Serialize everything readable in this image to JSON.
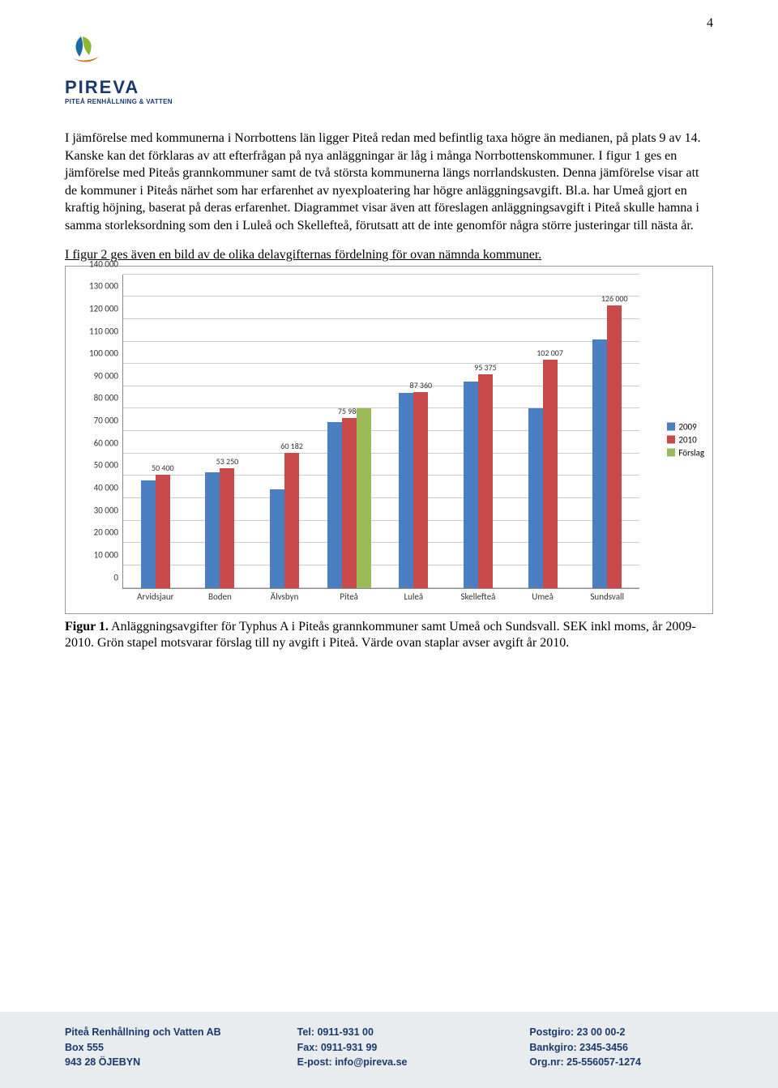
{
  "page_number": "4",
  "logo": {
    "name": "PIREVA",
    "subtitle": "PITEÅ RENHÅLLNING & VATTEN",
    "leaf_left_color": "#1a6aa8",
    "leaf_right_color": "#8ab833",
    "swoosh_color": "#c97a1e"
  },
  "paragraph1": "I jämförelse med kommunerna i Norrbottens län ligger Piteå redan med befintlig taxa högre än medianen, på plats 9 av 14. Kanske kan det förklaras av att efterfrågan på nya anläggningar är låg i många Norrbottenskommuner. I figur 1 ges en jämförelse med Piteås grannkommuner samt de två största kommunerna längs norrlandskusten. Denna jämförelse visar att de kommuner i Piteås närhet som har erfarenhet av nyexploatering har högre anläggningsavgift. Bl.a. har Umeå gjort en kraftig höjning, baserat på deras erfarenhet. Diagrammet visar även att föreslagen anläggningsavgift i Piteå skulle hamna i samma storleksordning som den i Luleå och Skellefteå, förutsatt att de inte genomför några större justeringar till nästa år.",
  "chart_intro": "I figur 2 ges även en bild av de olika delavgifternas fördelning för ovan nämnda kommuner.",
  "chart": {
    "ymax": 140000,
    "ytick_step": 10000,
    "yticks": [
      "0",
      "10 000",
      "20 000",
      "30 000",
      "40 000",
      "50 000",
      "60 000",
      "70 000",
      "80 000",
      "90 000",
      "100 000",
      "110 000",
      "120 000",
      "130 000",
      "140 000"
    ],
    "categories": [
      "Arvidsjaur",
      "Boden",
      "Älvsbyn",
      "Piteå",
      "Luleå",
      "Skellefteå",
      "Umeå",
      "Sundsvall"
    ],
    "series": [
      {
        "name": "2009",
        "color": "#4a7fc1"
      },
      {
        "name": "2010",
        "color": "#c94a4a"
      },
      {
        "name": "Förslag",
        "color": "#9bbb59"
      }
    ],
    "data": {
      "2009": [
        48000,
        51500,
        44000,
        74000,
        87000,
        92000,
        80000,
        111000
      ],
      "2010": [
        50400,
        53250,
        60182,
        75980,
        87360,
        95375,
        102007,
        126000
      ],
      "Förslag": [
        null,
        null,
        null,
        80000,
        null,
        null,
        null,
        null
      ]
    },
    "value_labels": {
      "Arvidsjaur": "50 400",
      "Boden": "53 250",
      "Älvsbyn": "60 182",
      "Piteå": "75 980",
      "Luleå": "87 360",
      "Skellefteå": "95 375",
      "Umeå": "102 007",
      "Sundsvall": "126 000"
    }
  },
  "caption_bold": "Figur 1.",
  "caption_rest": " Anläggningsavgifter för Typhus A i Piteås grannkommuner samt Umeå och Sundsvall. SEK inkl moms, år 2009-2010. Grön stapel motsvarar förslag till ny avgift i Piteå. Värde ovan staplar avser avgift år 2010.",
  "footer": {
    "col1": {
      "line1": "Piteå Renhållning och Vatten AB",
      "line2": "Box 555",
      "line3": "943 28 ÖJEBYN"
    },
    "col2": {
      "line1": "Tel: 0911-931 00",
      "line2": "Fax: 0911-931 99",
      "line3": "E-post: info@pireva.se"
    },
    "col3": {
      "line1": "Postgiro: 23 00 00-2",
      "line2": "Bankgiro: 2345-3456",
      "line3": "Org.nr: 25-556057-1274"
    }
  }
}
